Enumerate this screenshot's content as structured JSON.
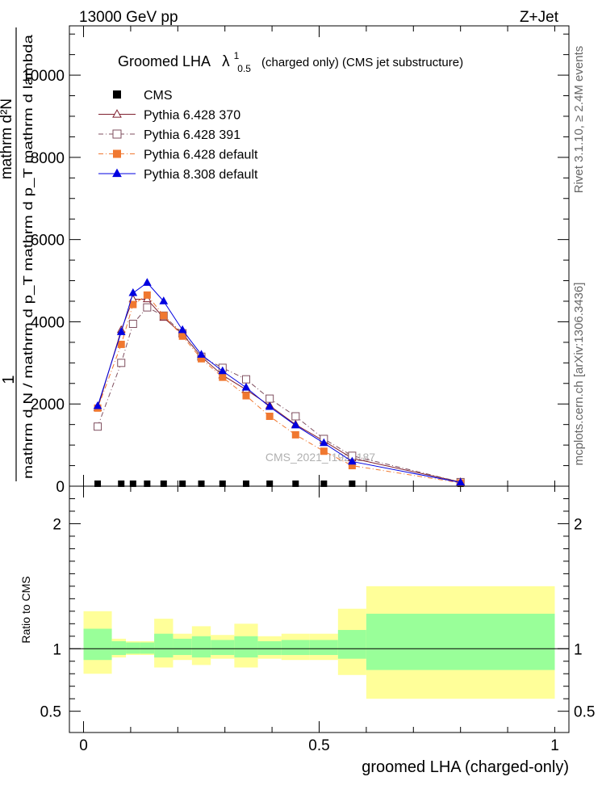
{
  "header": {
    "energy_label": "13000 GeV pp",
    "process_label": "Z+Jet"
  },
  "side_labels": {
    "rivet": "Rivet 3.1.10, ≥ 2.4M events",
    "mcplots": "mcplots.cern.ch [arXiv:1306.3436]"
  },
  "watermark": "CMS_2021_I1920187",
  "chart_data": [
    {
      "type": "line",
      "panel": "main",
      "title": "Groomed LHA",
      "title_symbol": "λ",
      "title_superscript": "1",
      "title_subscript": "0.5",
      "title_suffix": "(charged only) (CMS jet substructure)",
      "ylabel_top": "1",
      "ylabel_numerator": "mathrm d²N",
      "ylabel_denominator": "mathrm d N / mathrm d p_T mathrm d p_T mathrm d lambda",
      "xlim": [
        -0.03,
        1.03
      ],
      "ylim": [
        0,
        11200
      ],
      "y_ticks": [
        0,
        2000,
        4000,
        6000,
        8000,
        10000
      ],
      "y_tick_labels": [
        "0",
        "2000",
        "4000",
        "6000",
        "8000",
        "10000"
      ],
      "legend_position": "top-left",
      "x": [
        0.03,
        0.08,
        0.105,
        0.135,
        0.17,
        0.21,
        0.25,
        0.295,
        0.345,
        0.395,
        0.45,
        0.51,
        0.57,
        0.8
      ],
      "series": [
        {
          "name": "CMS",
          "color": "#000000",
          "marker": "square-filled",
          "values": [
            60,
            60,
            60,
            60,
            60,
            60,
            60,
            60,
            60,
            60,
            60,
            60,
            60,
            60
          ]
        },
        {
          "name": "Pythia 6.428 370",
          "color": "#7f1f2f",
          "marker": "triangle-open",
          "line": "solid",
          "values": [
            1900,
            3800,
            4550,
            4550,
            4100,
            3700,
            3150,
            2700,
            2350,
            1960,
            1500,
            1100,
            680,
            100
          ]
        },
        {
          "name": "Pythia 6.428 391",
          "color": "#7f4f5f",
          "marker": "square-open",
          "line": "dashdot",
          "values": [
            1450,
            3000,
            3950,
            4350,
            4150,
            3720,
            3150,
            2880,
            2600,
            2130,
            1700,
            1150,
            740,
            100
          ]
        },
        {
          "name": "Pythia 6.428 default",
          "color": "#f07830",
          "marker": "square-filled",
          "line": "dashdot",
          "values": [
            1900,
            3450,
            4420,
            4650,
            4150,
            3650,
            3100,
            2650,
            2200,
            1700,
            1250,
            850,
            500,
            80
          ]
        },
        {
          "name": "Pythia 8.308 default",
          "color": "#0000e0",
          "marker": "triangle-filled",
          "line": "solid",
          "values": [
            1950,
            3750,
            4700,
            4950,
            4500,
            3800,
            3200,
            2800,
            2400,
            1930,
            1480,
            1050,
            600,
            90
          ]
        }
      ]
    },
    {
      "type": "area",
      "panel": "ratio",
      "ylabel": "Ratio to CMS",
      "xlabel": "groomed LHA (charged-only)",
      "xlim": [
        -0.03,
        1.03
      ],
      "ylim": [
        0.33,
        2.3
      ],
      "x_ticks": [
        0,
        0.5,
        1
      ],
      "x_tick_labels": [
        "0",
        "0.5",
        "1"
      ],
      "y_ticks": [
        0.5,
        1,
        2
      ],
      "y_tick_labels": [
        "0.5",
        "1",
        "2"
      ],
      "reference_line": 1,
      "bins": [
        [
          0.0,
          0.06
        ],
        [
          0.06,
          0.09
        ],
        [
          0.09,
          0.12
        ],
        [
          0.12,
          0.15
        ],
        [
          0.15,
          0.19
        ],
        [
          0.19,
          0.23
        ],
        [
          0.23,
          0.27
        ],
        [
          0.27,
          0.32
        ],
        [
          0.32,
          0.37
        ],
        [
          0.37,
          0.42
        ],
        [
          0.42,
          0.48
        ],
        [
          0.48,
          0.54
        ],
        [
          0.54,
          0.6
        ],
        [
          0.6,
          1.0
        ]
      ],
      "stat_band": {
        "name": "stat",
        "color": "#99ff99",
        "low": [
          0.91,
          0.95,
          0.96,
          0.96,
          0.93,
          0.95,
          0.93,
          0.95,
          0.93,
          0.95,
          0.95,
          0.95,
          0.92,
          0.83
        ],
        "high": [
          1.16,
          1.06,
          1.05,
          1.05,
          1.12,
          1.08,
          1.1,
          1.07,
          1.1,
          1.06,
          1.07,
          1.07,
          1.15,
          1.28
        ]
      },
      "total_band": {
        "name": "total",
        "color": "#ffff99",
        "low": [
          0.8,
          0.93,
          0.95,
          0.95,
          0.85,
          0.91,
          0.87,
          0.92,
          0.85,
          0.92,
          0.91,
          0.91,
          0.79,
          0.6
        ],
        "high": [
          1.3,
          1.08,
          1.06,
          1.06,
          1.24,
          1.12,
          1.18,
          1.11,
          1.2,
          1.1,
          1.12,
          1.12,
          1.32,
          1.5
        ]
      }
    }
  ]
}
